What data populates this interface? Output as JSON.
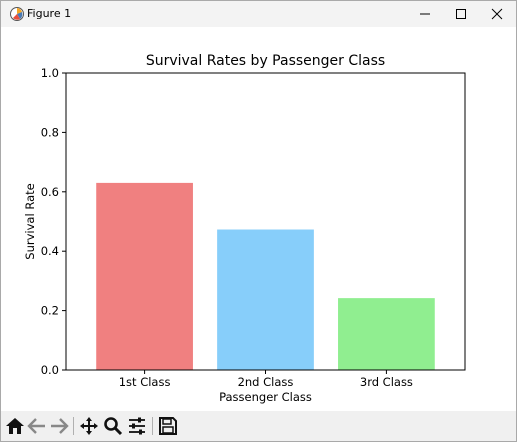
{
  "window": {
    "title": "Figure 1",
    "icon": "matplotlib-icon",
    "controls": [
      "minimize-icon",
      "maximize-icon",
      "close-icon"
    ]
  },
  "toolbar": {
    "tools": [
      "home-icon",
      "back-arrow-icon",
      "forward-arrow-icon",
      "pan-icon",
      "zoom-icon",
      "configure-subplots-icon",
      "save-icon"
    ]
  },
  "chart_data": {
    "type": "bar",
    "title": "Survival Rates by Passenger Class",
    "xlabel": "Passenger Class",
    "ylabel": "Survival Rate",
    "categories": [
      "1st Class",
      "2nd Class",
      "3rd Class"
    ],
    "values": [
      0.63,
      0.473,
      0.242
    ],
    "colors": [
      "#f08080",
      "#87cefa",
      "#90ee90"
    ],
    "ylim": [
      0,
      1.0
    ],
    "yticks": [
      "0.0",
      "0.2",
      "0.4",
      "0.6",
      "0.8",
      "1.0"
    ],
    "grid": false,
    "legend": "none"
  }
}
